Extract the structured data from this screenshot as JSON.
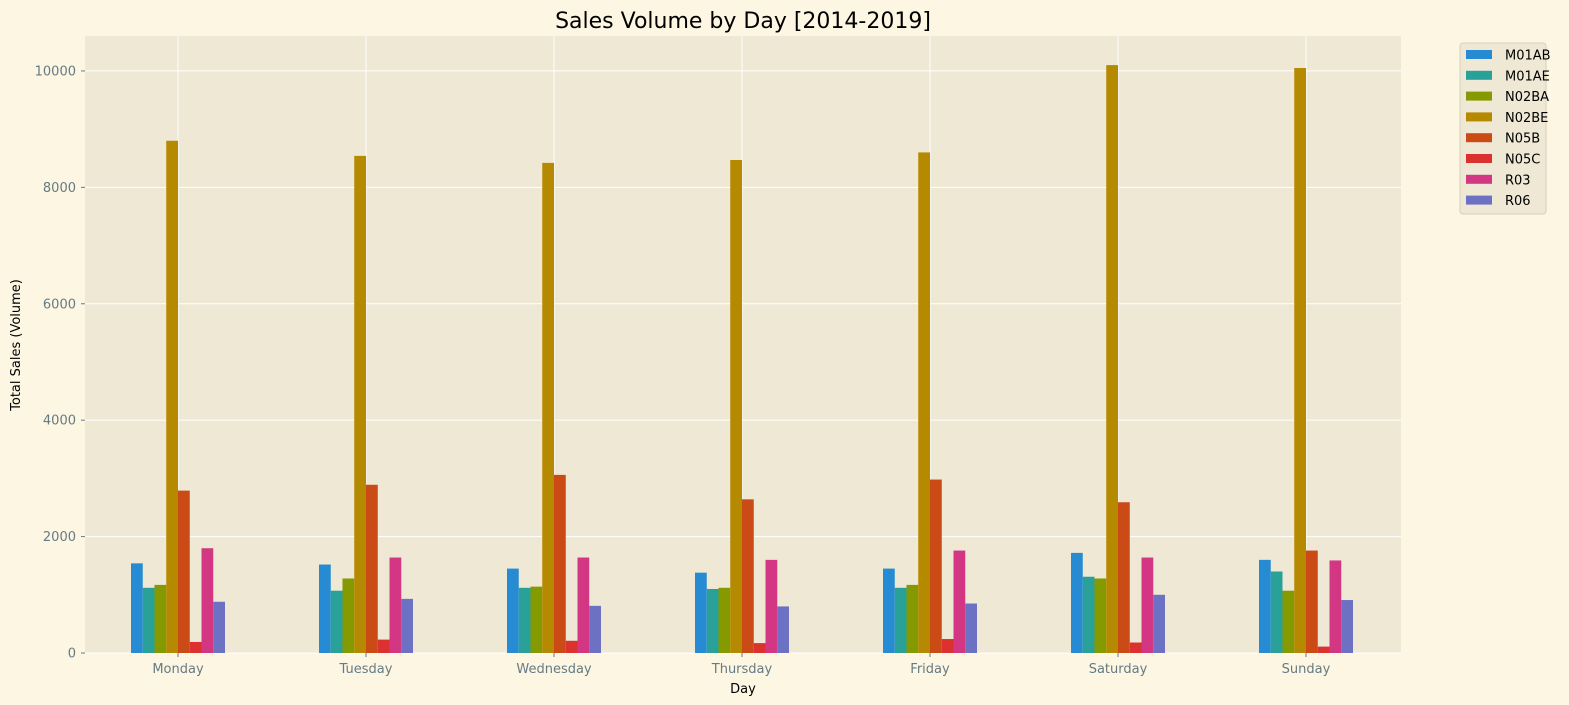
{
  "chart_data": {
    "type": "bar",
    "title": "Sales Volume by Day [2014-2019]",
    "xlabel": "Day",
    "ylabel": "Total Sales (Volume)",
    "ylim": [
      0,
      10600
    ],
    "yticks": [
      0,
      2000,
      4000,
      6000,
      8000,
      10000
    ],
    "grid": true,
    "legend_position": "outside-top-right",
    "categories": [
      "Monday",
      "Tuesday",
      "Wednesday",
      "Thursday",
      "Friday",
      "Saturday",
      "Sunday"
    ],
    "series": [
      {
        "name": "M01AB",
        "color": "#268bd2",
        "values": [
          1540,
          1520,
          1450,
          1380,
          1450,
          1720,
          1600
        ]
      },
      {
        "name": "M01AE",
        "color": "#2aa198",
        "values": [
          1120,
          1070,
          1120,
          1100,
          1120,
          1310,
          1400
        ]
      },
      {
        "name": "N02BA",
        "color": "#859900",
        "values": [
          1170,
          1280,
          1140,
          1120,
          1170,
          1280,
          1070
        ]
      },
      {
        "name": "N02BE",
        "color": "#b58900",
        "values": [
          8800,
          8540,
          8420,
          8470,
          8600,
          10100,
          10050
        ]
      },
      {
        "name": "N05B",
        "color": "#cb4b16",
        "values": [
          2790,
          2890,
          3060,
          2640,
          2980,
          2590,
          1760
        ]
      },
      {
        "name": "N05C",
        "color": "#dc322f",
        "values": [
          190,
          230,
          210,
          170,
          240,
          180,
          110
        ]
      },
      {
        "name": "R03",
        "color": "#d33682",
        "values": [
          1800,
          1640,
          1640,
          1600,
          1760,
          1640,
          1590
        ]
      },
      {
        "name": "R06",
        "color": "#6c71c4",
        "values": [
          880,
          930,
          810,
          800,
          850,
          1000,
          910
        ]
      }
    ]
  },
  "colors": {
    "page_background": "#fdf6e3",
    "plot_background": "#eee8d5",
    "grid": "#ffffff"
  }
}
